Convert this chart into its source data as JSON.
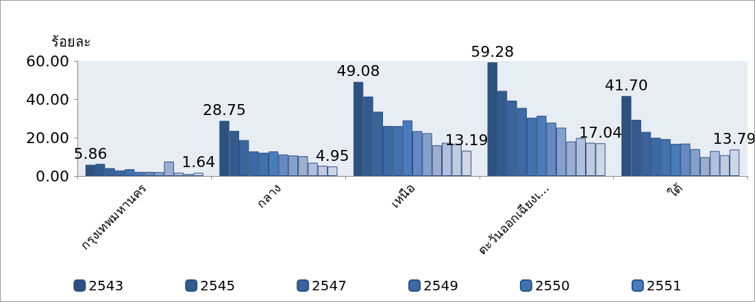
{
  "chart_data": {
    "type": "bar",
    "ylabel": "ร้อยละ",
    "categories": [
      "กรุงเทพมหานคร",
      "กลาง",
      "เหนือ",
      "ตะวันออกเฉียงเ...",
      "ใต้"
    ],
    "series": [
      {
        "name": "2543",
        "color": "#2e5280",
        "values": [
          5.86,
          28.75,
          49.08,
          59.28,
          41.7
        ],
        "value_labels": [
          "5.86",
          "28.75",
          "49.08",
          "59.28",
          "41.70"
        ]
      },
      {
        "name": "2545",
        "color": "#345b8e",
        "values": [
          6.3,
          23.5,
          41.4,
          44.4,
          29.3
        ]
      },
      {
        "name": "2547",
        "color": "#3a649b",
        "values": [
          4.1,
          18.7,
          33.5,
          39.3,
          23.0
        ]
      },
      {
        "name": "2549",
        "color": "#3d6aa6",
        "values": [
          2.9,
          12.8,
          26.1,
          35.5,
          19.9
        ]
      },
      {
        "name": "2550",
        "color": "#4272ae",
        "values": [
          3.5,
          12.1,
          26.0,
          30.4,
          19.2
        ]
      },
      {
        "name": "2551",
        "color": "#4a7cbd",
        "values": [
          2.1,
          12.8,
          29.0,
          31.4,
          16.7
        ]
      },
      {
        "color": "#6689c3",
        "values": [
          2.1,
          11.2,
          23.4,
          27.8,
          16.9
        ]
      },
      {
        "color": "#85a0cb",
        "values": [
          2.0,
          10.7,
          22.3,
          25.2,
          14.0
        ]
      },
      {
        "color": "#9daed1",
        "values": [
          7.5,
          10.3,
          16.0,
          18.0,
          9.8
        ]
      },
      {
        "color": "#b0c0de",
        "values": [
          1.7,
          6.9,
          17.3,
          19.8,
          13.0
        ]
      },
      {
        "color": "#c0cbe0",
        "values": [
          1.0,
          5.3,
          16.6,
          17.3,
          10.8
        ]
      },
      {
        "color": "#cfd6e6",
        "values": [
          1.64,
          4.95,
          13.19,
          17.04,
          13.79
        ],
        "value_labels": [
          "1.64",
          "4.95",
          "13.19",
          "17.04",
          "13.79"
        ]
      }
    ],
    "ylim": [
      0,
      60
    ],
    "yticks": [
      {
        "value": 0,
        "label": "0.00"
      },
      {
        "value": 20,
        "label": "20.00"
      },
      {
        "value": 40,
        "label": "40.00"
      },
      {
        "value": 60,
        "label": "60.00"
      }
    ],
    "grid": false,
    "legend": "bottom"
  }
}
